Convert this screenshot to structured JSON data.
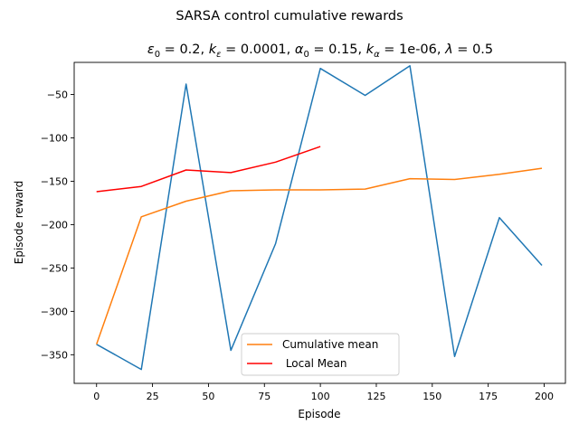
{
  "chart_data": {
    "type": "line",
    "title": "SARSA control cumulative rewards",
    "subtitle_parts": [
      {
        "t": "ε",
        "style": "italic"
      },
      {
        "t": "0",
        "style": "sub"
      },
      {
        "t": " = 0.2, ",
        "style": "normal"
      },
      {
        "t": "k",
        "style": "italic"
      },
      {
        "t": "ε",
        "style": "sub-italic"
      },
      {
        "t": " = 0.0001, ",
        "style": "normal"
      },
      {
        "t": "α",
        "style": "italic"
      },
      {
        "t": "0",
        "style": "sub"
      },
      {
        "t": " = 0.15, ",
        "style": "normal"
      },
      {
        "t": "k",
        "style": "italic"
      },
      {
        "t": "α",
        "style": "sub-italic"
      },
      {
        "t": " = 1e-06, ",
        "style": "normal"
      },
      {
        "t": "λ",
        "style": "italic"
      },
      {
        "t": " = 0.5",
        "style": "normal"
      }
    ],
    "xlabel": "Episode",
    "ylabel": "Episode reward",
    "xlim": [
      -10,
      209.5
    ],
    "ylim": [
      -383,
      -13
    ],
    "xticks": [
      0,
      25,
      50,
      75,
      100,
      125,
      150,
      175,
      200
    ],
    "xtick_labels": [
      "0",
      "25",
      "50",
      "75",
      "100",
      "125",
      "150",
      "175",
      "200"
    ],
    "yticks": [
      -350,
      -300,
      -250,
      -200,
      -150,
      -100,
      -50
    ],
    "ytick_labels": [
      "−350",
      "−300",
      "−250",
      "−200",
      "−150",
      "−100",
      "−50"
    ],
    "legend_position": "lower-center",
    "series": [
      {
        "x": [
          0,
          20,
          40,
          60,
          80,
          100,
          120,
          140,
          160,
          180,
          199
        ],
        "y": [
          -338,
          -367,
          -38,
          -345,
          -222,
          -20,
          -51,
          -17,
          -352,
          -192,
          -247
        ],
        "color": "#1f77b4"
      },
      {
        "name": "Cumulative mean",
        "x": [
          0,
          20,
          40,
          60,
          80,
          100,
          120,
          140,
          160,
          180,
          199
        ],
        "y": [
          -338,
          -191,
          -173,
          -161,
          -160,
          -160,
          -159,
          -147,
          -148,
          -142,
          -135
        ],
        "color": "#ff7f0e"
      },
      {
        "name": " Local Mean",
        "x": [
          0,
          20,
          40,
          60,
          80,
          100
        ],
        "y": [
          -162,
          -156,
          -137,
          -140,
          -128,
          -110
        ],
        "color": "#ff0000"
      }
    ]
  }
}
